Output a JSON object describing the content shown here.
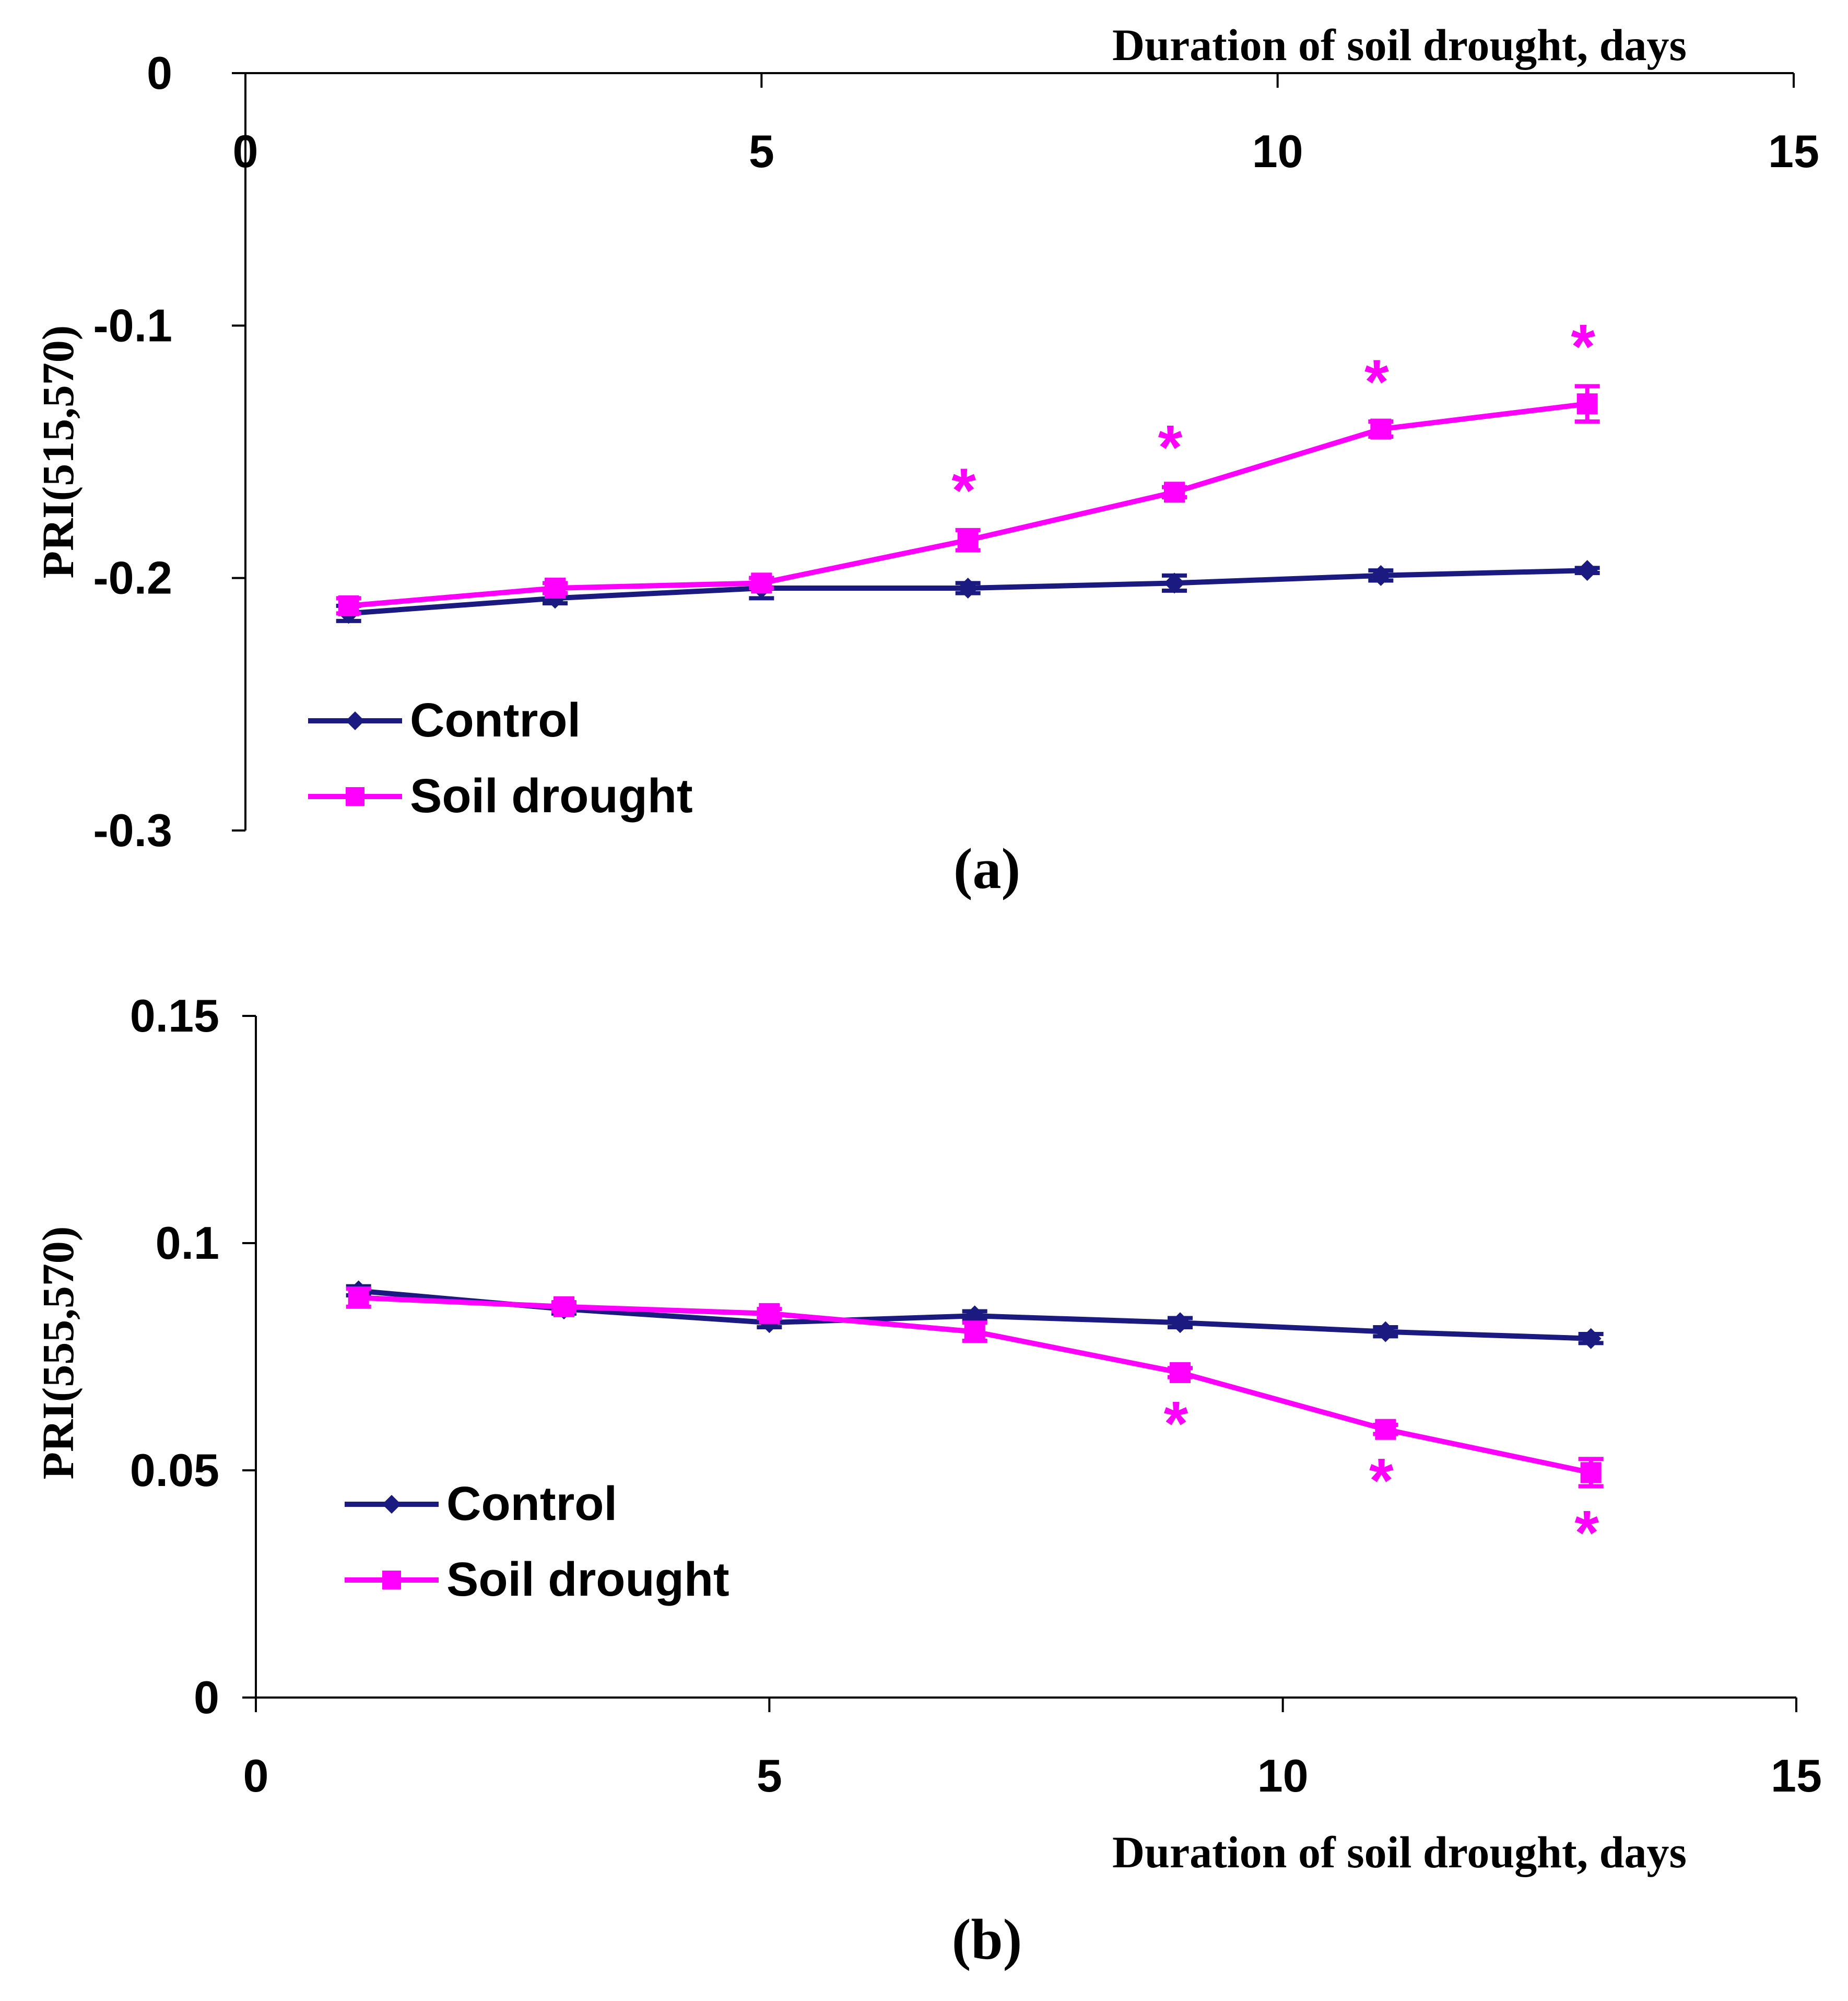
{
  "chart_data": [
    {
      "id": "a",
      "type": "line",
      "panel_label": "(a)",
      "title": "",
      "xlabel": "Duration of soil drought, days",
      "ylabel": "PRI(515,570)",
      "xlim": [
        0,
        15
      ],
      "ylim": [
        -0.3,
        0
      ],
      "x_ticks": [
        "0",
        "5",
        "10",
        "15"
      ],
      "y_ticks": [
        "0",
        "-0.1",
        "-0.2",
        "-0.3"
      ],
      "x_tick_values": [
        0,
        5,
        10,
        15
      ],
      "y_tick_values": [
        0,
        -0.1,
        -0.2,
        -0.3
      ],
      "grid": false,
      "legend_position": "lower-left",
      "series": [
        {
          "name": "Control",
          "color": "#1a1a80",
          "marker": "diamond",
          "x": [
            1,
            3,
            5,
            7,
            9,
            11,
            13
          ],
          "values": [
            -0.214,
            -0.208,
            -0.204,
            -0.204,
            -0.202,
            -0.199,
            -0.197
          ],
          "errors": [
            0.003,
            0.002,
            0.004,
            0.002,
            0.003,
            0.002,
            0.001
          ]
        },
        {
          "name": "Soil drought",
          "color": "#ff00ff",
          "marker": "square",
          "x": [
            1,
            3,
            5,
            7,
            9,
            11,
            13
          ],
          "values": [
            -0.211,
            -0.204,
            -0.202,
            -0.185,
            -0.166,
            -0.141,
            -0.131
          ],
          "errors": [
            0.003,
            0.002,
            0.002,
            0.004,
            0.002,
            0.003,
            0.007
          ],
          "significance": [
            false,
            false,
            false,
            true,
            true,
            true,
            true
          ]
        }
      ],
      "annotations": [
        "*",
        "*",
        "*",
        "*"
      ]
    },
    {
      "id": "b",
      "type": "line",
      "panel_label": "(b)",
      "title": "",
      "xlabel": "Duration of soil drought, days",
      "ylabel": "PRI(555,570)",
      "xlim": [
        0,
        15
      ],
      "ylim": [
        0,
        0.15
      ],
      "x_ticks": [
        "0",
        "5",
        "10",
        "15"
      ],
      "y_ticks": [
        "0.15",
        "0.1",
        "0.05",
        "0"
      ],
      "x_tick_values": [
        0,
        5,
        10,
        15
      ],
      "y_tick_values": [
        0.15,
        0.1,
        0.05,
        0
      ],
      "grid": false,
      "legend_position": "lower-left",
      "series": [
        {
          "name": "Control",
          "color": "#1a1a80",
          "marker": "diamond",
          "x": [
            1,
            3,
            5,
            7,
            9,
            11,
            13
          ],
          "values": [
            0.0895,
            0.0855,
            0.0825,
            0.084,
            0.0825,
            0.0805,
            0.079
          ],
          "errors": [
            0.001,
            0.001,
            0.001,
            0.001,
            0.001,
            0.001,
            0.001
          ]
        },
        {
          "name": "Soil drought",
          "color": "#ff00ff",
          "marker": "square",
          "x": [
            1,
            3,
            5,
            7,
            9,
            11,
            13
          ],
          "values": [
            0.088,
            0.086,
            0.0845,
            0.0805,
            0.0715,
            0.059,
            0.0495
          ],
          "errors": [
            0.002,
            0.001,
            0.001,
            0.002,
            0.001,
            0.001,
            0.003
          ],
          "significance": [
            false,
            false,
            false,
            false,
            true,
            true,
            true
          ]
        }
      ],
      "annotations": [
        "*",
        "*",
        "*"
      ]
    }
  ]
}
